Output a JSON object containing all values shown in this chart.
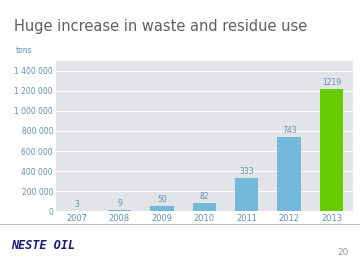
{
  "title": "Huge increase in waste and residue use",
  "ylabel": "tons",
  "categories": [
    "2007",
    "2008",
    "2009",
    "2010",
    "2011",
    "2012",
    "2013"
  ],
  "values": [
    3000,
    9000,
    50000,
    82000,
    333000,
    743000,
    1219000
  ],
  "labels": [
    "3",
    "9",
    "50",
    "82",
    "333",
    "743",
    "1219"
  ],
  "ylim": [
    0,
    1500000
  ],
  "yticks": [
    0,
    200000,
    400000,
    600000,
    800000,
    1000000,
    1200000,
    1400000
  ],
  "ytick_labels": [
    "0",
    "200 000",
    "400 000",
    "600 000",
    "800 000",
    "1 000 000",
    "1 200 000",
    "1 400 000"
  ],
  "bg_color": "#e2e4e8",
  "white_bg": "#ffffff",
  "title_color": "#606060",
  "tick_color": "#6090b8",
  "label_color": "#6090b8",
  "footer_text": "NESTE OIL",
  "page_num": "20",
  "green_bar_color": "#66cc00",
  "blue_bar_color": "#72b8d8",
  "grid_color": "#ffffff",
  "footer_line_color": "#a0a8b8"
}
